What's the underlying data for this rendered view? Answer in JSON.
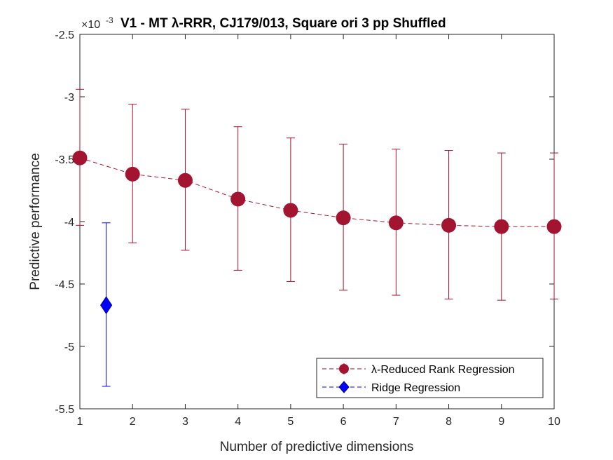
{
  "chart_data": {
    "type": "line",
    "title": "V1 - MT λ-RRR, CJ179/013, Square ori 3 pp Shuffled",
    "exponent_prefix": "×10",
    "exponent_power": "-3",
    "xlabel": "Number of predictive dimensions",
    "ylabel": "Predictive performance",
    "xlim": [
      1,
      10
    ],
    "ylim": [
      -5.5,
      -2.5
    ],
    "y_scale_factor": 0.001,
    "x_ticks": [
      1,
      2,
      3,
      4,
      5,
      6,
      7,
      8,
      9,
      10
    ],
    "x_tick_labels": [
      "1",
      "2",
      "3",
      "4",
      "5",
      "6",
      "7",
      "8",
      "9",
      "10"
    ],
    "y_ticks": [
      -5.5,
      -5,
      -4.5,
      -4,
      -3.5,
      -3,
      -2.5
    ],
    "y_tick_labels": [
      "-5.5",
      "-5",
      "-4.5",
      "-4",
      "-3.5",
      "-3",
      "-2.5"
    ],
    "grid": false,
    "legend_placement": "bottom-right",
    "series": [
      {
        "name": "λ-Reduced Rank Regression",
        "color": "#a2142f",
        "marker": "circle",
        "line_style": "dashed",
        "x": [
          1,
          2,
          3,
          4,
          5,
          6,
          7,
          8,
          9,
          10
        ],
        "y": [
          -3.49,
          -3.62,
          -3.67,
          -3.82,
          -3.91,
          -3.97,
          -4.01,
          -4.03,
          -4.04,
          -4.04
        ],
        "err_low": [
          -4.03,
          -4.17,
          -4.23,
          -4.39,
          -4.48,
          -4.55,
          -4.59,
          -4.62,
          -4.63,
          -4.62
        ],
        "err_high": [
          -2.94,
          -3.06,
          -3.1,
          -3.24,
          -3.33,
          -3.38,
          -3.42,
          -3.43,
          -3.45,
          -3.45
        ]
      },
      {
        "name": "Ridge Regression",
        "color": "#0000ff",
        "edge_color": "#000080",
        "marker": "diamond",
        "line_style": "dashed",
        "x": [
          1.5
        ],
        "y": [
          -4.67
        ],
        "err_low": [
          -5.32
        ],
        "err_high": [
          -4.01
        ]
      }
    ]
  }
}
